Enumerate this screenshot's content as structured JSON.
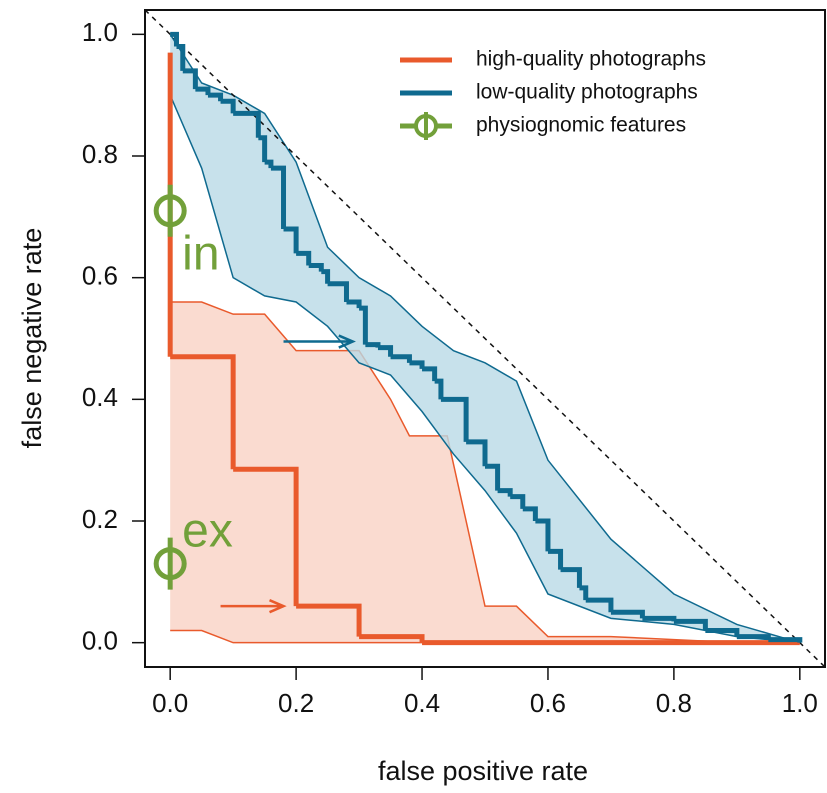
{
  "chart_data": {
    "type": "line",
    "xlabel": "false positive rate",
    "ylabel": "false negative rate",
    "xlim": [
      -0.04,
      1.04
    ],
    "ylim": [
      -0.04,
      1.04
    ],
    "xticks": [
      {
        "value": 0,
        "label": "0.0"
      },
      0.2,
      0.4,
      0.6,
      0.8,
      {
        "value": 1,
        "label": "1.0"
      }
    ],
    "yticks": [
      {
        "value": 0,
        "label": "0.0"
      },
      0.2,
      0.4,
      0.6,
      0.8,
      {
        "value": 1,
        "label": "1.0"
      }
    ],
    "diagonal": true,
    "legend": "top-right",
    "series": [
      {
        "name": "high-quality photographs",
        "color": "#e95a2c",
        "step": "hv",
        "x": [
          0,
          0,
          0.1,
          0.2,
          0.3,
          0.4,
          1.0
        ],
        "values": [
          0.97,
          0.47,
          0.285,
          0.06,
          0.01,
          0,
          0
        ],
        "band": {
          "color": "#f9d2c4",
          "x": [
            0,
            0.05,
            0.1,
            0.15,
            0.2,
            0.3,
            0.35,
            0.38,
            0.44,
            0.5,
            0.55,
            0.6,
            0.7,
            0.9,
            0.95
          ],
          "upper": [
            0.56,
            0.56,
            0.54,
            0.54,
            0.48,
            0.48,
            0.4,
            0.34,
            0.34,
            0.06,
            0.06,
            0.01,
            0.01,
            0,
            0
          ],
          "lower": [
            0.02,
            0.02,
            0,
            0,
            0,
            0,
            0,
            0,
            0,
            0,
            0,
            0,
            0,
            0,
            0
          ]
        },
        "arrow": {
          "x": [
            0.08,
            0.18
          ],
          "y": 0.06
        }
      },
      {
        "name": "low-quality photographs",
        "color": "#0f6a8f",
        "step": "hv",
        "x": [
          0,
          0.01,
          0.02,
          0.04,
          0.06,
          0.08,
          0.1,
          0.14,
          0.15,
          0.16,
          0.18,
          0.2,
          0.22,
          0.24,
          0.25,
          0.28,
          0.3,
          0.31,
          0.33,
          0.35,
          0.38,
          0.4,
          0.42,
          0.43,
          0.47,
          0.5,
          0.52,
          0.54,
          0.56,
          0.58,
          0.6,
          0.62,
          0.65,
          0.66,
          0.7,
          0.75,
          0.8,
          0.85,
          0.9,
          0.95,
          1.0
        ],
        "values": [
          1.0,
          0.98,
          0.94,
          0.91,
          0.9,
          0.89,
          0.87,
          0.83,
          0.79,
          0.78,
          0.68,
          0.64,
          0.62,
          0.61,
          0.59,
          0.56,
          0.55,
          0.49,
          0.485,
          0.47,
          0.46,
          0.45,
          0.43,
          0.4,
          0.33,
          0.29,
          0.25,
          0.24,
          0.22,
          0.2,
          0.15,
          0.12,
          0.09,
          0.07,
          0.05,
          0.04,
          0.035,
          0.02,
          0.01,
          0.005,
          0
        ],
        "band": {
          "color": "#b9d9e6",
          "x": [
            0,
            0.05,
            0.1,
            0.15,
            0.2,
            0.25,
            0.3,
            0.35,
            0.4,
            0.45,
            0.5,
            0.55,
            0.6,
            0.7,
            0.8,
            0.9,
            1.0
          ],
          "upper": [
            1.0,
            0.92,
            0.9,
            0.87,
            0.79,
            0.65,
            0.6,
            0.57,
            0.52,
            0.48,
            0.46,
            0.43,
            0.3,
            0.17,
            0.08,
            0.03,
            0
          ],
          "lower": [
            0.9,
            0.78,
            0.6,
            0.57,
            0.56,
            0.52,
            0.46,
            0.44,
            0.38,
            0.31,
            0.25,
            0.18,
            0.08,
            0.04,
            0.03,
            0.01,
            0
          ]
        },
        "arrow": {
          "x": [
            0.18,
            0.29
          ],
          "y": 0.495
        }
      },
      {
        "name": "physiognomic features",
        "color": "#72a03a",
        "marker": "phi",
        "x": [
          0,
          0
        ],
        "values": [
          0.71,
          0.13
        ],
        "point_labels": [
          "in",
          "ex"
        ],
        "label_pos": [
          "sub",
          "sup"
        ]
      }
    ]
  }
}
